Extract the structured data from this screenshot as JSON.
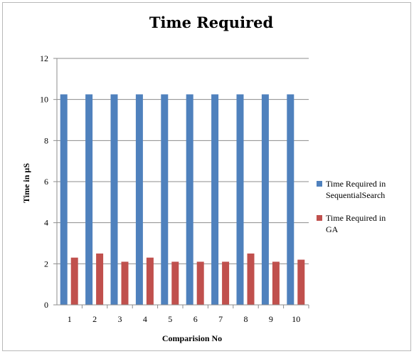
{
  "chart_data": {
    "type": "bar",
    "title": "Time Required",
    "xlabel": "Comparision No",
    "ylabel": "Time in µS",
    "categories": [
      "1",
      "2",
      "3",
      "4",
      "5",
      "6",
      "7",
      "8",
      "9",
      "10"
    ],
    "ylim": [
      0,
      12
    ],
    "yticks": [
      0,
      2,
      4,
      6,
      8,
      10,
      12
    ],
    "grid": true,
    "legend_position": "right",
    "series": [
      {
        "name": "Time Required in Sequential Search",
        "legend_lines": [
          "Time Required in",
          "SequentialSearch"
        ],
        "color": "#4f81bd",
        "values": [
          10.25,
          10.25,
          10.25,
          10.25,
          10.25,
          10.25,
          10.25,
          10.25,
          10.25,
          10.25
        ]
      },
      {
        "name": "Time Required in GA",
        "legend_lines": [
          "Time Required in",
          "GA"
        ],
        "color": "#c0504d",
        "values": [
          2.3,
          2.5,
          2.1,
          2.3,
          2.1,
          2.1,
          2.1,
          2.5,
          2.1,
          2.2
        ]
      }
    ]
  }
}
